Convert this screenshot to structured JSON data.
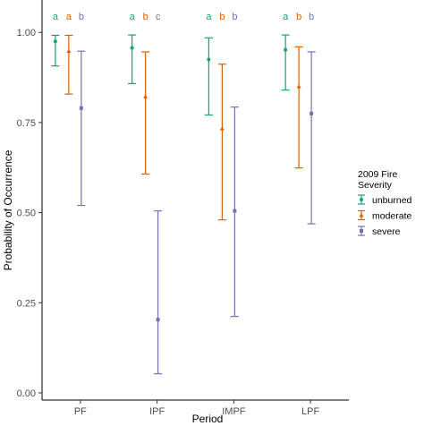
{
  "chart_data": {
    "type": "scatter",
    "xlabel": "Period",
    "ylabel": "Probability of Occurrence",
    "categories": [
      "PF",
      "IPF",
      "IMPF",
      "LPF"
    ],
    "ylim": [
      -0.02,
      1.09
    ],
    "yticks": [
      "0.00",
      "0.25",
      "0.50",
      "0.75",
      "1.00"
    ],
    "grid": false,
    "legend": {
      "title": "2009 Fire\nSeverity",
      "placement": "right"
    },
    "series": [
      {
        "name": "unburned",
        "color": "#1b9e77",
        "marker": "circle",
        "values": [
          0.975,
          0.957,
          0.925,
          0.952
        ],
        "lower": [
          0.907,
          0.858,
          0.771,
          0.84
        ],
        "upper": [
          0.992,
          0.993,
          0.985,
          0.993
        ],
        "letters": [
          "a",
          "a",
          "a",
          "a"
        ]
      },
      {
        "name": "moderate",
        "color": "#d95f02",
        "marker": "triangle",
        "values": [
          0.948,
          0.822,
          0.733,
          0.85
        ],
        "lower": [
          0.829,
          0.607,
          0.48,
          0.624
        ],
        "upper": [
          0.992,
          0.946,
          0.912,
          0.96
        ],
        "letters": [
          "a",
          "b",
          "b",
          "b"
        ]
      },
      {
        "name": "severe",
        "color": "#7570b3",
        "marker": "square",
        "values": [
          0.79,
          0.203,
          0.505,
          0.775
        ],
        "lower": [
          0.52,
          0.053,
          0.212,
          0.469
        ],
        "upper": [
          0.948,
          0.505,
          0.793,
          0.946
        ],
        "letters": [
          "b",
          "c",
          "b",
          "b"
        ]
      }
    ]
  }
}
